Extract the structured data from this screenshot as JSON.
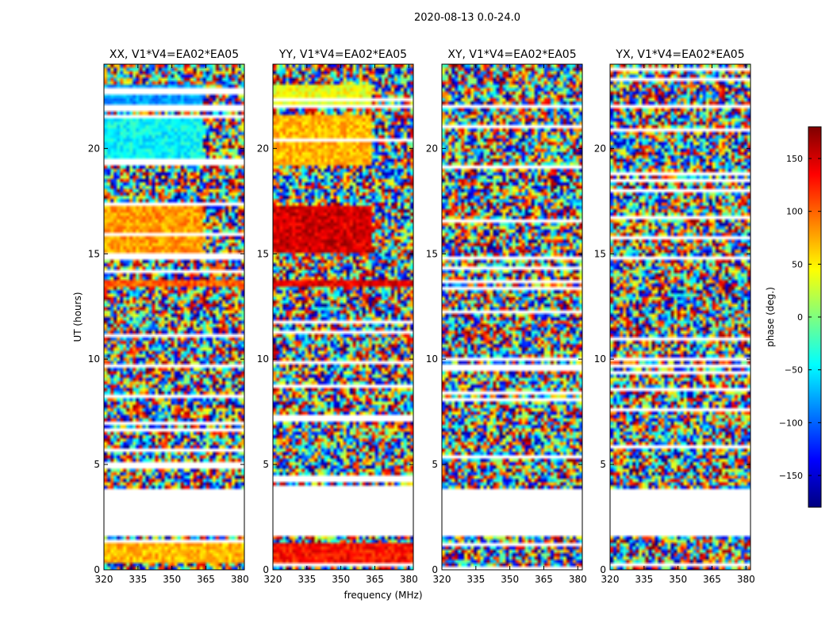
{
  "suptitle": "2020-08-13 0.0-24.0",
  "chart_data": {
    "type": "heatmap",
    "title": "2020-08-13 0.0-24.0",
    "xlabel": "frequency (MHz)",
    "ylabel": "UT (hours)",
    "xlim": [
      320,
      382
    ],
    "ylim": [
      0,
      24
    ],
    "xticks": [
      320,
      335,
      350,
      365,
      380
    ],
    "yticks": [
      0,
      5,
      10,
      15,
      20
    ],
    "colorbar": {
      "label": "phase (deg.)",
      "range": [
        -180,
        180
      ],
      "ticks": [
        -150,
        -100,
        -50,
        0,
        50,
        100,
        150
      ],
      "colormap": "jet",
      "colors": [
        "#00007f",
        "#0000ff",
        "#007fff",
        "#00ffff",
        "#7fff7f",
        "#ffff00",
        "#ff7f00",
        "#ff0000",
        "#7f0000"
      ]
    },
    "panels": [
      {
        "title": "XX, V1*V4=EA02*EA05",
        "pol": "XX"
      },
      {
        "title": "YY, V1*V4=EA02*EA05",
        "pol": "YY"
      },
      {
        "title": "XY, V1*V4=EA02*EA05",
        "pol": "XY"
      },
      {
        "title": "YX, V1*V4=EA02*EA05",
        "pol": "YX"
      }
    ],
    "flagged_gaps_hours": [
      [
        1.6,
        3.9
      ],
      [
        21.9,
        22.1
      ]
    ],
    "bands": [
      {
        "y0": 22.1,
        "y1": 23.0,
        "XX": -80,
        "YY": 40,
        "xlimit": 363
      },
      {
        "y0": 19.2,
        "y1": 21.6,
        "XX": -45,
        "YY": 70,
        "xlimit": 363
      },
      {
        "y0": 15.0,
        "y1": 17.2,
        "XX": 80,
        "YY": 150,
        "xlimit": 363
      },
      {
        "y0": 13.4,
        "y1": 13.8,
        "XX": 100,
        "YY": 140,
        "xlimit": 382
      },
      {
        "y0": 0.4,
        "y1": 1.3,
        "XX": 70,
        "YY": 130,
        "xlimit": 382
      }
    ]
  }
}
